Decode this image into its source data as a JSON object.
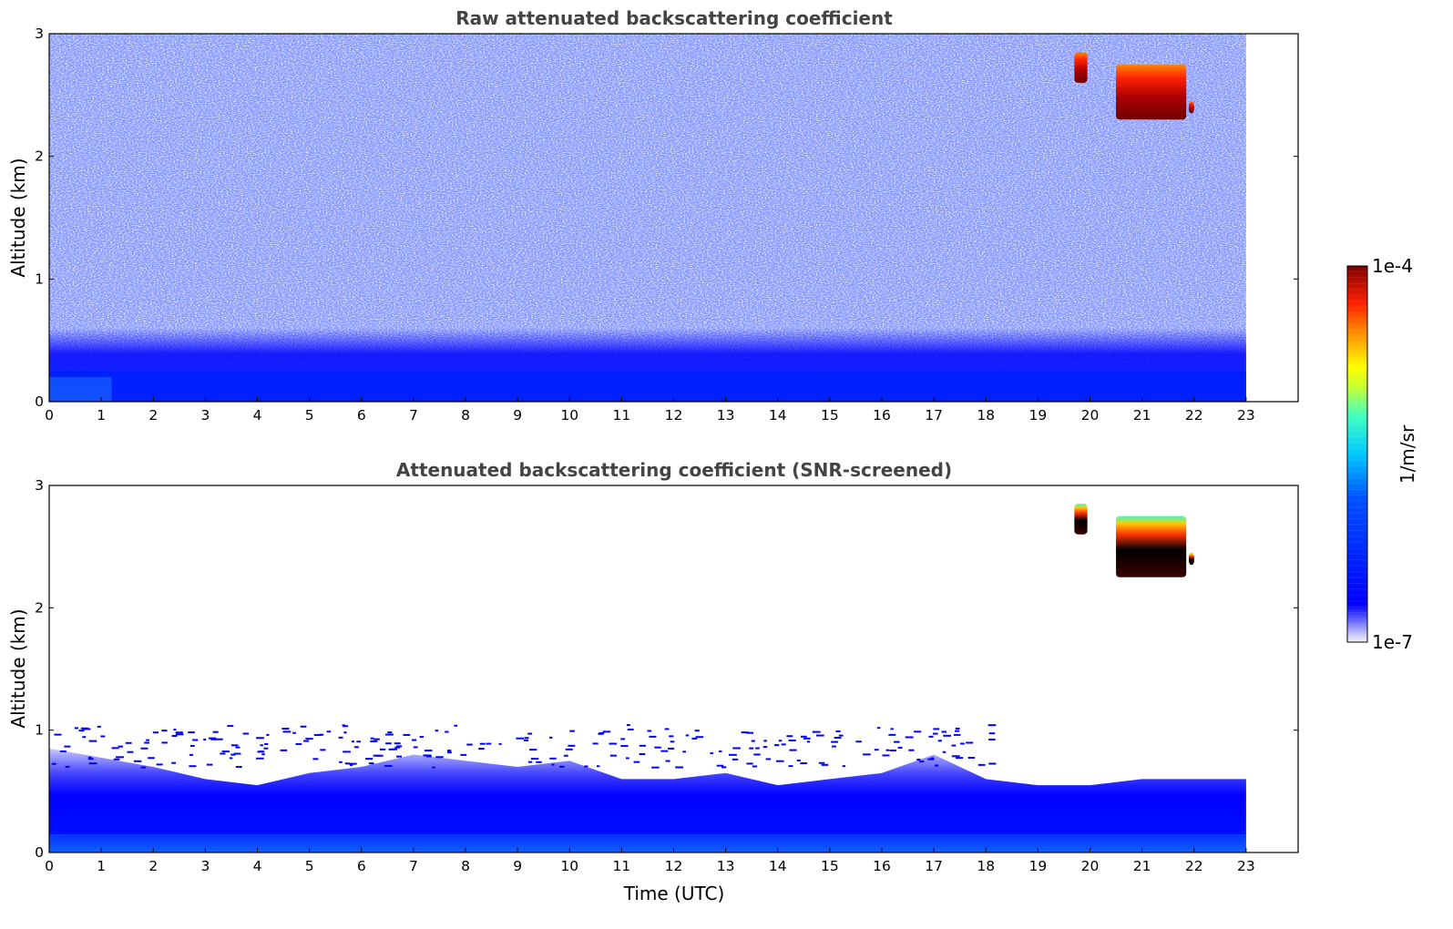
{
  "chart_data": [
    {
      "type": "heatmap",
      "title": "Raw attenuated backscattering coefficient",
      "xlabel": "",
      "ylabel": "Altitude (km)",
      "xlim": [
        0,
        24
      ],
      "ylim": [
        0,
        3
      ],
      "x_data_range": [
        0,
        23
      ],
      "xticks": [
        "0",
        "1",
        "2",
        "3",
        "4",
        "5",
        "6",
        "7",
        "8",
        "9",
        "10",
        "11",
        "12",
        "13",
        "14",
        "15",
        "16",
        "17",
        "18",
        "19",
        "20",
        "21",
        "22",
        "23"
      ],
      "yticks": [
        "0",
        "1",
        "2",
        "3"
      ],
      "screened": false,
      "noise_profile_base_km": [
        0.25,
        0.6
      ],
      "features": [
        {
          "kind": "cloud",
          "x_start": 19.7,
          "x_end": 19.95,
          "y_low": 2.6,
          "y_high": 2.85,
          "level": "1e-4"
        },
        {
          "kind": "cloud",
          "x_start": 20.5,
          "x_end": 21.85,
          "y_low": 2.3,
          "y_high": 2.75,
          "level": "1e-4"
        },
        {
          "kind": "cloud",
          "x_start": 21.9,
          "x_end": 22.0,
          "y_low": 2.35,
          "y_high": 2.45,
          "level": "1e-4"
        }
      ]
    },
    {
      "type": "heatmap",
      "title": "Attenuated backscattering coefficient (SNR-screened)",
      "xlabel": "Time (UTC)",
      "ylabel": "Altitude (km)",
      "xlim": [
        0,
        24
      ],
      "ylim": [
        0,
        3
      ],
      "x_data_range": [
        0,
        23
      ],
      "xticks": [
        "0",
        "1",
        "2",
        "3",
        "4",
        "5",
        "6",
        "7",
        "8",
        "9",
        "10",
        "11",
        "12",
        "13",
        "14",
        "15",
        "16",
        "17",
        "18",
        "19",
        "20",
        "21",
        "22",
        "23"
      ],
      "yticks": [
        "0",
        "1",
        "2",
        "3"
      ],
      "screened": true,
      "boundary_layer_top_km": [
        {
          "x": 0,
          "y": 0.85
        },
        {
          "x": 2,
          "y": 0.7
        },
        {
          "x": 3,
          "y": 0.6
        },
        {
          "x": 4,
          "y": 0.55
        },
        {
          "x": 5,
          "y": 0.65
        },
        {
          "x": 6,
          "y": 0.7
        },
        {
          "x": 7,
          "y": 0.8
        },
        {
          "x": 8,
          "y": 0.75
        },
        {
          "x": 9,
          "y": 0.7
        },
        {
          "x": 10,
          "y": 0.75
        },
        {
          "x": 11,
          "y": 0.6
        },
        {
          "x": 12,
          "y": 0.6
        },
        {
          "x": 13,
          "y": 0.65
        },
        {
          "x": 14,
          "y": 0.55
        },
        {
          "x": 15,
          "y": 0.6
        },
        {
          "x": 16,
          "y": 0.65
        },
        {
          "x": 17,
          "y": 0.8
        },
        {
          "x": 18,
          "y": 0.6
        },
        {
          "x": 19,
          "y": 0.55
        },
        {
          "x": 20,
          "y": 0.55
        },
        {
          "x": 21,
          "y": 0.6
        },
        {
          "x": 22,
          "y": 0.6
        },
        {
          "x": 23,
          "y": 0.6
        }
      ],
      "features": [
        {
          "kind": "cloud",
          "x_start": 19.7,
          "x_end": 19.95,
          "y_low": 2.6,
          "y_high": 2.85,
          "level": "1e-4"
        },
        {
          "kind": "cloud",
          "x_start": 20.5,
          "x_end": 21.85,
          "y_low": 2.25,
          "y_high": 2.75,
          "level": "1e-4"
        },
        {
          "kind": "cloud",
          "x_start": 21.9,
          "x_end": 22.0,
          "y_low": 2.35,
          "y_high": 2.45,
          "level": "1e-4"
        }
      ]
    }
  ],
  "colorbar": {
    "label": "1/m/sr",
    "max_label": "1e-4",
    "min_label": "1e-7",
    "colormap": "jet",
    "colors": [
      "#f0f0ff",
      "#0000ff",
      "#00aaff",
      "#33ffcc",
      "#ffff00",
      "#ff8800",
      "#ff0000",
      "#800000"
    ]
  }
}
